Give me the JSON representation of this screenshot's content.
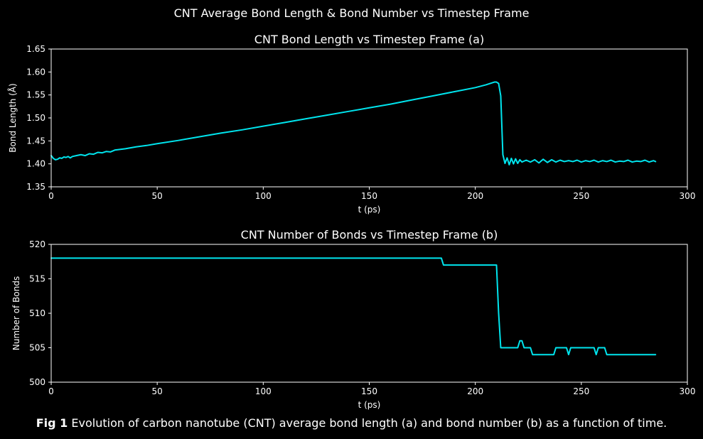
{
  "figure": {
    "suptitle": "CNT Average Bond Length & Bond Number vs Timestep Frame",
    "caption_label": "Fig 1",
    "caption_text": " Evolution of carbon nanotube (CNT) average bond length (a) and bond number (b) as a function of time.",
    "background_color": "#000000",
    "line_color": "#00e5ee",
    "axis_color": "#ffffff"
  },
  "chart_data": [
    {
      "type": "line",
      "title": "CNT Bond Length vs Timestep Frame (a)",
      "xlabel": "t (ps)",
      "ylabel": "Bond Length (Å)",
      "xlim": [
        0,
        300
      ],
      "ylim": [
        1.35,
        1.65
      ],
      "xticks": [
        0,
        50,
        100,
        150,
        200,
        250,
        300
      ],
      "yticks": [
        1.35,
        1.4,
        1.45,
        1.5,
        1.55,
        1.6,
        1.65
      ],
      "ytick_labels": [
        "1.35",
        "1.40",
        "1.45",
        "1.50",
        "1.55",
        "1.60",
        "1.65"
      ],
      "grid": false,
      "series": [
        {
          "x": [
            0,
            1,
            2,
            3,
            4,
            5,
            6,
            7,
            8,
            9,
            10,
            12,
            14,
            16,
            18,
            20,
            22,
            24,
            26,
            28,
            30,
            35,
            40,
            45,
            50,
            60,
            70,
            80,
            90,
            100,
            110,
            120,
            130,
            140,
            150,
            160,
            170,
            180,
            190,
            200,
            205,
            209,
            210,
            211,
            212,
            213,
            214,
            215,
            216,
            217,
            218,
            219,
            220,
            221,
            222,
            224,
            226,
            228,
            230,
            232,
            234,
            236,
            238,
            240,
            242,
            244,
            246,
            248,
            250,
            252,
            254,
            256,
            258,
            260,
            262,
            264,
            266,
            268,
            270,
            272,
            274,
            276,
            278,
            280,
            282,
            284,
            285
          ],
          "y": [
            1.418,
            1.412,
            1.409,
            1.41,
            1.413,
            1.412,
            1.415,
            1.414,
            1.416,
            1.413,
            1.416,
            1.418,
            1.42,
            1.418,
            1.422,
            1.421,
            1.425,
            1.424,
            1.427,
            1.426,
            1.43,
            1.433,
            1.437,
            1.44,
            1.444,
            1.451,
            1.459,
            1.467,
            1.474,
            1.482,
            1.49,
            1.498,
            1.506,
            1.514,
            1.522,
            1.53,
            1.539,
            1.548,
            1.557,
            1.566,
            1.572,
            1.578,
            1.578,
            1.575,
            1.548,
            1.42,
            1.401,
            1.413,
            1.398,
            1.412,
            1.4,
            1.411,
            1.401,
            1.409,
            1.404,
            1.408,
            1.404,
            1.409,
            1.402,
            1.41,
            1.403,
            1.409,
            1.404,
            1.408,
            1.405,
            1.407,
            1.405,
            1.408,
            1.404,
            1.407,
            1.405,
            1.408,
            1.404,
            1.407,
            1.405,
            1.408,
            1.404,
            1.406,
            1.405,
            1.408,
            1.404,
            1.406,
            1.405,
            1.408,
            1.404,
            1.407,
            1.405
          ]
        }
      ]
    },
    {
      "type": "line",
      "title": "CNT Number of Bonds vs Timestep Frame (b)",
      "xlabel": "t (ps)",
      "ylabel": "Number of Bonds",
      "xlim": [
        0,
        300
      ],
      "ylim": [
        500,
        520
      ],
      "xticks": [
        0,
        50,
        100,
        150,
        200,
        250,
        300
      ],
      "yticks": [
        500,
        505,
        510,
        515,
        520
      ],
      "ytick_labels": [
        "500",
        "505",
        "510",
        "515",
        "520"
      ],
      "grid": false,
      "series": [
        {
          "x": [
            0,
            184,
            185,
            210,
            211,
            212,
            220,
            221,
            222,
            223,
            225,
            226,
            227,
            237,
            238,
            243,
            244,
            245,
            256,
            257,
            258,
            260,
            261,
            262,
            285
          ],
          "y": [
            518,
            518,
            517,
            517,
            510,
            505,
            505,
            506,
            506,
            505,
            505,
            505,
            504,
            504,
            505,
            505,
            504,
            505,
            505,
            504,
            505,
            505,
            505,
            504,
            504
          ]
        }
      ]
    }
  ]
}
